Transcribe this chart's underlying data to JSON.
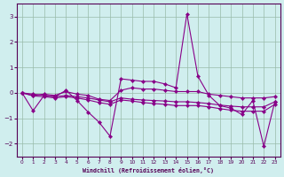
{
  "xlabel": "Windchill (Refroidissement éolien,°C)",
  "background_color": "#d0eeee",
  "grid_color": "#a0ccbb",
  "line_color": "#880088",
  "series": {
    "y1": [
      0.0,
      -0.7,
      -0.1,
      -0.15,
      0.1,
      -0.3,
      -0.75,
      -1.15,
      -1.7,
      0.55,
      0.5,
      0.45,
      0.45,
      0.35,
      0.2,
      3.1,
      0.65,
      -0.1,
      -0.5,
      -0.6,
      -0.85,
      -0.3,
      -2.1,
      -0.35
    ],
    "y2": [
      0.0,
      -0.1,
      -0.05,
      -0.1,
      0.05,
      -0.05,
      -0.1,
      -0.25,
      -0.3,
      0.1,
      0.2,
      0.15,
      0.15,
      0.1,
      0.05,
      0.05,
      0.05,
      -0.05,
      -0.1,
      -0.15,
      -0.2,
      -0.2,
      -0.2,
      -0.15
    ],
    "y3": [
      0.0,
      -0.05,
      -0.1,
      -0.15,
      -0.1,
      -0.15,
      -0.2,
      -0.28,
      -0.35,
      -0.2,
      -0.25,
      -0.28,
      -0.3,
      -0.32,
      -0.35,
      -0.35,
      -0.38,
      -0.42,
      -0.48,
      -0.52,
      -0.55,
      -0.55,
      -0.55,
      -0.35
    ],
    "y4": [
      0.0,
      -0.12,
      -0.15,
      -0.2,
      -0.15,
      -0.2,
      -0.28,
      -0.38,
      -0.45,
      -0.28,
      -0.32,
      -0.38,
      -0.42,
      -0.45,
      -0.5,
      -0.5,
      -0.5,
      -0.55,
      -0.62,
      -0.68,
      -0.72,
      -0.72,
      -0.72,
      -0.45
    ]
  },
  "ylim": [
    -2.5,
    3.5
  ],
  "xlim": [
    -0.5,
    23.5
  ],
  "xticks": [
    0,
    1,
    2,
    3,
    4,
    5,
    6,
    7,
    8,
    9,
    10,
    11,
    12,
    13,
    14,
    15,
    16,
    17,
    18,
    19,
    20,
    21,
    22,
    23
  ],
  "yticks": [
    -2,
    -1,
    0,
    1,
    2,
    3
  ]
}
